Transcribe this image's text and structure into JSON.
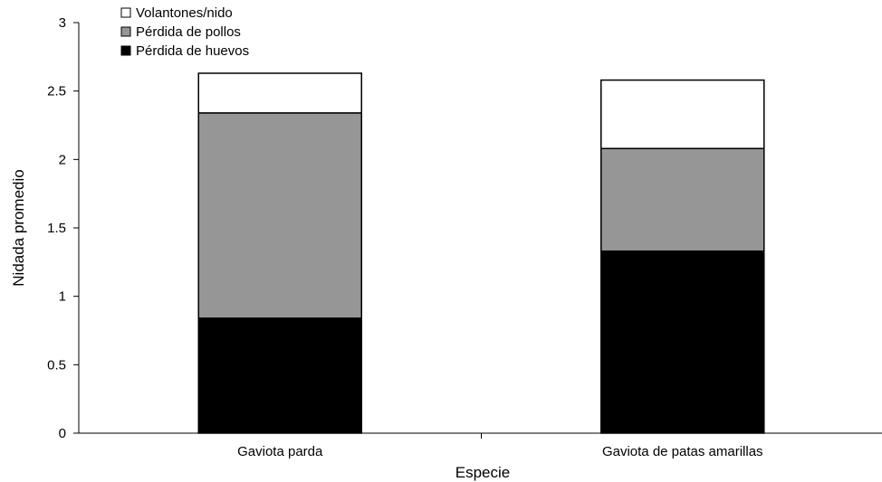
{
  "chart_data": {
    "type": "bar",
    "stacked": true,
    "title": "",
    "xlabel": "Especie",
    "ylabel": "Nidada promedio",
    "ylim": [
      0,
      3
    ],
    "yticks": [
      "0",
      "0.5",
      "1",
      "1.5",
      "2",
      "2.5",
      "3"
    ],
    "categories": [
      "Gaviota parda",
      "Gaviota de patas amarillas"
    ],
    "series": [
      {
        "name": "Pérdida de huevos",
        "color": "#000000",
        "values": [
          0.84,
          1.33
        ]
      },
      {
        "name": "Pérdida de pollos",
        "color": "#969696",
        "values": [
          1.5,
          0.75
        ]
      },
      {
        "name": "Volantones/nido",
        "color": "#ffffff",
        "values": [
          0.29,
          0.5
        ]
      }
    ],
    "legend": {
      "position": "top-left",
      "order": [
        "Volantones/nido",
        "Pérdida de pollos",
        "Pérdida de huevos"
      ]
    },
    "grid": false
  }
}
